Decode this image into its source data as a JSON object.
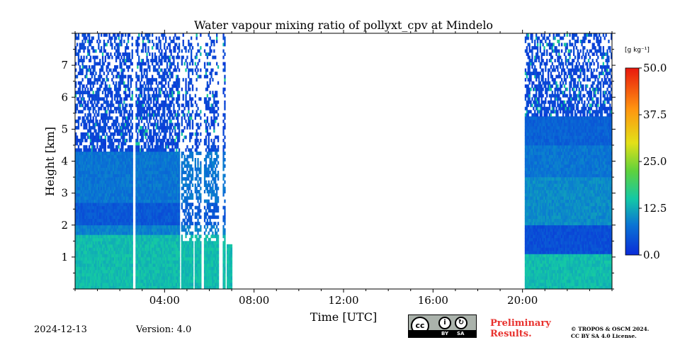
{
  "chart_data": {
    "type": "heatmap",
    "title": "Water vapour mixing ratio of pollyxt_cpv at Mindelo",
    "xlabel": "Time [UTC]",
    "ylabel": "Height [km]",
    "xlim_hours": [
      0,
      24
    ],
    "ylim_km": [
      0,
      8
    ],
    "x_ticks": [
      {
        "value": 4,
        "label": "04:00"
      },
      {
        "value": 8,
        "label": "08:00"
      },
      {
        "value": 12,
        "label": "12:00"
      },
      {
        "value": 16,
        "label": "16:00"
      },
      {
        "value": 20,
        "label": "20:00"
      }
    ],
    "y_ticks": [
      {
        "value": 1,
        "label": "1"
      },
      {
        "value": 2,
        "label": "2"
      },
      {
        "value": 3,
        "label": "3"
      },
      {
        "value": 4,
        "label": "4"
      },
      {
        "value": 5,
        "label": "5"
      },
      {
        "value": 6,
        "label": "6"
      },
      {
        "value": 7,
        "label": "7"
      }
    ],
    "colorbar": {
      "unit": "[g kg⁻¹]",
      "min": 0,
      "max": 50,
      "ticks": [
        "0.0",
        "12.5",
        "25.0",
        "37.5",
        "50.0"
      ],
      "colors": [
        "#0a2bd8",
        "#0a74d4",
        "#14c8a6",
        "#5fd23c",
        "#e3e018",
        "#ff9510",
        "#e8180e"
      ]
    },
    "data_periods": [
      {
        "start_hour": 0.0,
        "end_hour": 7.0,
        "profile": "morning"
      },
      {
        "start_hour": 20.1,
        "end_hour": 24.0,
        "profile": "evening"
      }
    ],
    "gaps_hours": [
      [
        2.55,
        2.7
      ],
      [
        4.65,
        4.7
      ],
      [
        4.88,
        4.9
      ],
      [
        5.25,
        5.28
      ],
      [
        5.6,
        5.7
      ],
      [
        6.4,
        6.55
      ],
      [
        6.7,
        6.75
      ]
    ],
    "layers_gkg": {
      "morning": [
        {
          "from_km": 0.0,
          "to_km": 1.7,
          "value": 14
        },
        {
          "from_km": 1.7,
          "to_km": 2.0,
          "value": 9
        },
        {
          "from_km": 2.0,
          "to_km": 2.7,
          "value": 5
        },
        {
          "from_km": 2.7,
          "to_km": 4.3,
          "value": 8
        },
        {
          "from_km": 4.3,
          "to_km": 8.0,
          "value": 3
        }
      ],
      "evening": [
        {
          "from_km": 0.0,
          "to_km": 1.0,
          "value": 14
        },
        {
          "from_km": 1.0,
          "to_km": 2.0,
          "value": 4
        },
        {
          "from_km": 2.0,
          "to_km": 3.5,
          "value": 10
        },
        {
          "from_km": 3.5,
          "to_km": 4.5,
          "value": 8
        },
        {
          "from_km": 4.5,
          "to_km": 5.3,
          "value": 6
        },
        {
          "from_km": 5.3,
          "to_km": 8.0,
          "value": 3
        }
      ]
    }
  },
  "footer": {
    "date": "2024-12-13",
    "version": "Version: 4.0",
    "preliminary_line1": "Preliminary",
    "preliminary_line2": "Results.",
    "copyright_line1": "© TROPOS & OSCM 2024.",
    "copyright_line2": "CC BY SA 4.0 License.",
    "license_badge": {
      "cc": "cc",
      "by": "BY",
      "sa": "SA"
    }
  }
}
